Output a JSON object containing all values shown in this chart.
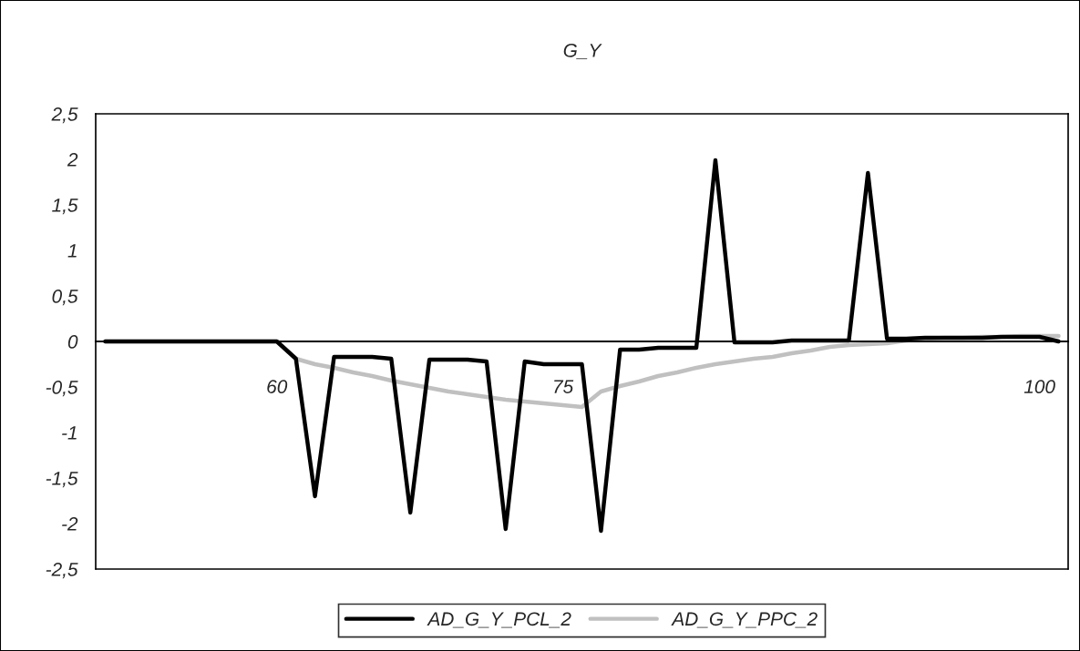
{
  "chart_data": {
    "type": "line",
    "title": "G_Y",
    "categories": [
      null,
      null,
      null,
      null,
      null,
      null,
      null,
      null,
      null,
      "60",
      null,
      null,
      null,
      null,
      null,
      null,
      null,
      null,
      null,
      null,
      null,
      null,
      null,
      null,
      "75",
      null,
      null,
      null,
      null,
      null,
      null,
      null,
      null,
      null,
      null,
      null,
      null,
      null,
      null,
      null,
      null,
      null,
      null,
      null,
      null,
      null,
      null,
      null,
      null,
      "100",
      null
    ],
    "series": [
      {
        "name": "AD_G_Y_PCL_2",
        "color": "#000000",
        "values": [
          0,
          0,
          0,
          0,
          0,
          0,
          0,
          0,
          0,
          0,
          -0.19,
          -1.7,
          -0.17,
          -0.17,
          -0.17,
          -0.19,
          -1.88,
          -0.2,
          -0.2,
          -0.2,
          -0.22,
          -2.06,
          -0.22,
          -0.25,
          -0.25,
          -0.25,
          -2.08,
          -0.09,
          -0.09,
          -0.07,
          -0.07,
          -0.07,
          1.99,
          -0.01,
          -0.01,
          -0.01,
          0.01,
          0.01,
          0.01,
          0.01,
          1.85,
          0.03,
          0.03,
          0.04,
          0.04,
          0.04,
          0.04,
          0.05,
          0.05,
          0.05,
          0.0
        ]
      },
      {
        "name": "AD_G_Y_PPC_2",
        "color": "#c0c0c0",
        "values": [
          0,
          0,
          0,
          0,
          0,
          0,
          0,
          0,
          0,
          0,
          -0.19,
          -0.25,
          -0.29,
          -0.34,
          -0.38,
          -0.43,
          -0.47,
          -0.51,
          -0.55,
          -0.58,
          -0.61,
          -0.64,
          -0.66,
          -0.68,
          -0.7,
          -0.72,
          -0.55,
          -0.49,
          -0.44,
          -0.38,
          -0.34,
          -0.29,
          -0.25,
          -0.22,
          -0.19,
          -0.17,
          -0.13,
          -0.1,
          -0.06,
          -0.04,
          -0.03,
          -0.02,
          0.01,
          0.03,
          0.04,
          0.04,
          0.05,
          0.05,
          0.06,
          0.06,
          0.06
        ]
      }
    ],
    "ylim": [
      -2.5,
      2.5
    ],
    "yticks": [
      {
        "value": -2.5,
        "label": "-2,5"
      },
      {
        "value": -2,
        "label": "-2"
      },
      {
        "value": -1.5,
        "label": "-1,5"
      },
      {
        "value": -1,
        "label": "-1"
      },
      {
        "value": -0.5,
        "label": "-0,5"
      },
      {
        "value": 0,
        "label": "0"
      },
      {
        "value": 0.5,
        "label": "0,5"
      },
      {
        "value": 1,
        "label": "1"
      },
      {
        "value": 1.5,
        "label": "1,5"
      },
      {
        "value": 2,
        "label": "2"
      },
      {
        "value": 2.5,
        "label": "2,5"
      }
    ],
    "legend": "bottom",
    "grid": false,
    "marker": "none",
    "line_style": "solid"
  }
}
